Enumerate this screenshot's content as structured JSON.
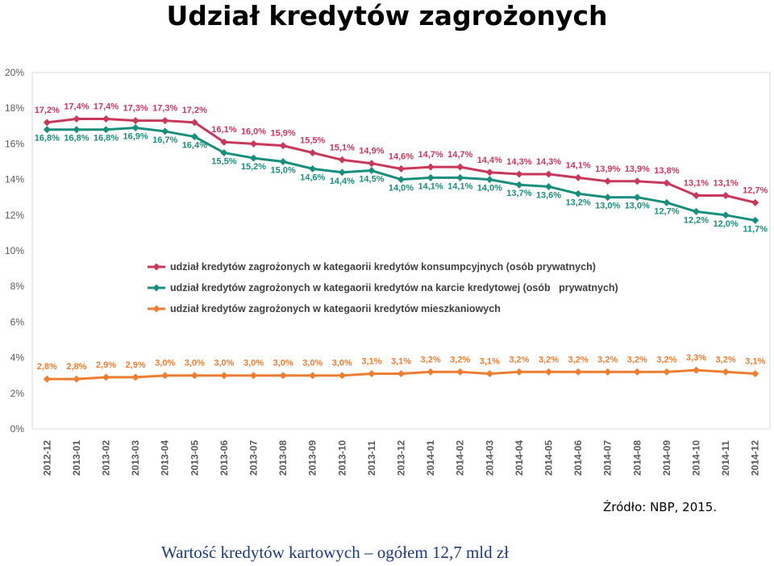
{
  "title": "Udział kredytów zagrożonych",
  "source_note": "Źródło: NBP, 2015.",
  "footer_text": "Wartość kredytów kartowych – ogółem 12,7 mld zł",
  "colors": {
    "consumer": "#c8385a",
    "card": "#1a8e7c",
    "mortgage": "#ed7d31",
    "grid": "#d9d9d9",
    "axis_text": "#595959"
  },
  "chart_data": {
    "type": "line",
    "categories": [
      "2012-12",
      "2013-01",
      "2013-02",
      "2013-03",
      "2013-04",
      "2013-05",
      "2013-06",
      "2013-07",
      "2013-08",
      "2013-09",
      "2013-10",
      "2013-11",
      "2013-12",
      "2014-01",
      "2014-02",
      "2014-03",
      "2014-04",
      "2014-05",
      "2014-06",
      "2014-07",
      "2014-08",
      "2014-09",
      "2014-10",
      "2014-11",
      "2014-12"
    ],
    "yticks": [
      "0%",
      "2%",
      "4%",
      "6%",
      "8%",
      "10%",
      "12%",
      "14%",
      "16%",
      "18%",
      "20%"
    ],
    "ylim": [
      0,
      20
    ],
    "grid": false,
    "legend_position": "center-left",
    "series": [
      {
        "name": "udział kredytów zagrożonych w kategaorii kredytów konsumpcyjnych (osób prywatnych)",
        "color_key": "consumer",
        "values": [
          17.2,
          17.4,
          17.4,
          17.3,
          17.3,
          17.2,
          16.1,
          16.0,
          15.9,
          15.5,
          15.1,
          14.9,
          14.6,
          14.7,
          14.7,
          14.4,
          14.3,
          14.3,
          14.1,
          13.9,
          13.9,
          13.8,
          13.1,
          13.1,
          12.7
        ],
        "labels": [
          "17,2%",
          "17,4%",
          "17,4%",
          "17,3%",
          "17,3%",
          "17,2%",
          "16,1%",
          "16,0%",
          "15,9%",
          "15,5%",
          "15,1%",
          "14,9%",
          "14,6%",
          "14,7%",
          "14,7%",
          "14,4%",
          "14,3%",
          "14,3%",
          "14,1%",
          "13,9%",
          "13,9%",
          "13,8%",
          "13,1%",
          "13,1%",
          "12,7%"
        ]
      },
      {
        "name": "udział kredytów zagrożonych w kategaorii kredytów na karcie kredytowej (osób   prywatnych)",
        "color_key": "card",
        "values": [
          16.8,
          16.8,
          16.8,
          16.9,
          16.7,
          16.4,
          15.5,
          15.2,
          15.0,
          14.6,
          14.4,
          14.5,
          14.0,
          14.1,
          14.1,
          14.0,
          13.7,
          13.6,
          13.2,
          13.0,
          13.0,
          12.7,
          12.2,
          12.0,
          11.7
        ],
        "labels": [
          "16,8%",
          "16,8%",
          "16,8%",
          "16,9%",
          "16,7%",
          "16,4%",
          "15,5%",
          "15,2%",
          "15,0%",
          "14,6%",
          "14,4%",
          "14,5%",
          "14,0%",
          "14,1%",
          "14,1%",
          "14,0%",
          "13,7%",
          "13,6%",
          "13,2%",
          "13,0%",
          "13,0%",
          "12,7%",
          "12,2%",
          "12,0%",
          "11,7%"
        ]
      },
      {
        "name": "udział kredytów zagrożonych w kategaorii kredytów mieszkaniowych",
        "color_key": "mortgage",
        "values": [
          2.8,
          2.8,
          2.9,
          2.9,
          3.0,
          3.0,
          3.0,
          3.0,
          3.0,
          3.0,
          3.0,
          3.1,
          3.1,
          3.2,
          3.2,
          3.1,
          3.2,
          3.2,
          3.2,
          3.2,
          3.2,
          3.2,
          3.3,
          3.2,
          3.1
        ],
        "labels": [
          "2,8%",
          "2,8%",
          "2,9%",
          "2,9%",
          "3,0%",
          "3,0%",
          "3,0%",
          "3,0%",
          "3,0%",
          "3,0%",
          "3,0%",
          "3,1%",
          "3,1%",
          "3,2%",
          "3,2%",
          "3,1%",
          "3,2%",
          "3,2%",
          "3,2%",
          "3,2%",
          "3,2%",
          "3,2%",
          "3,3%",
          "3,2%",
          "3,1%"
        ]
      }
    ]
  }
}
